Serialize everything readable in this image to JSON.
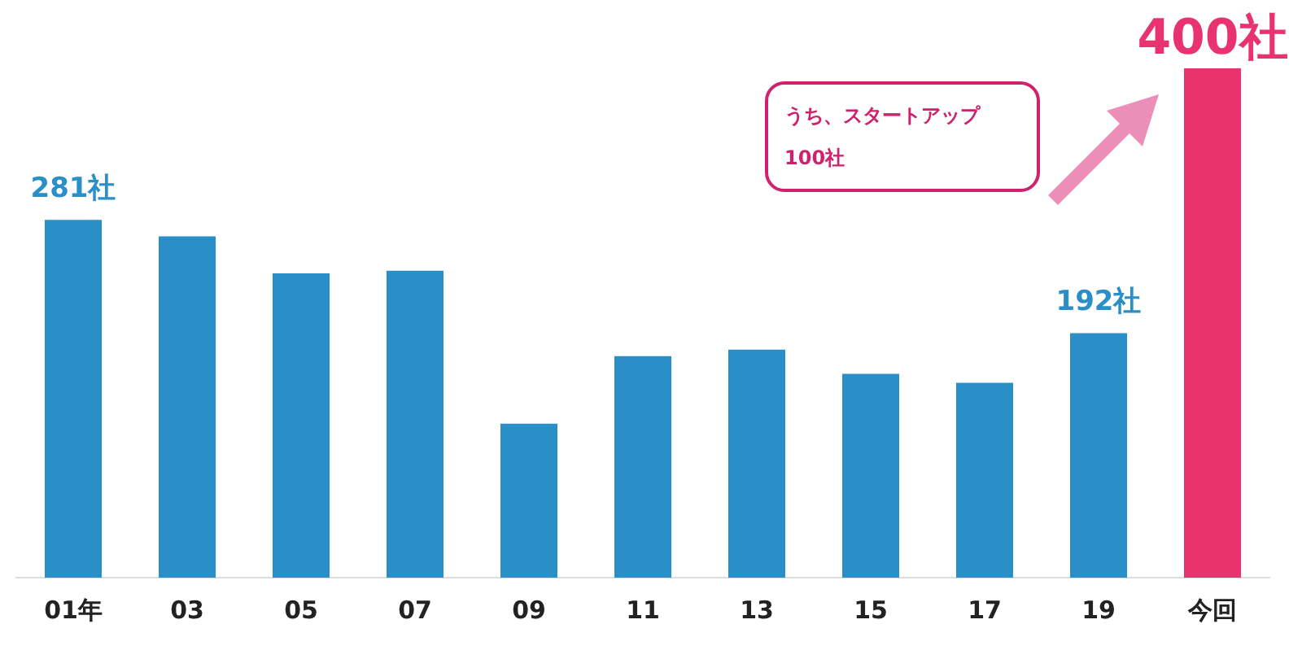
{
  "chart_data": {
    "type": "bar",
    "categories": [
      "01年",
      "03",
      "05",
      "07",
      "09",
      "11",
      "13",
      "15",
      "17",
      "19",
      "今回"
    ],
    "values": [
      281,
      268,
      239,
      241,
      121,
      174,
      179,
      160,
      153,
      192,
      400
    ],
    "colors": [
      "#2b8fc7",
      "#2b8fc7",
      "#2b8fc7",
      "#2b8fc7",
      "#2b8fc7",
      "#2b8fc7",
      "#2b8fc7",
      "#2b8fc7",
      "#2b8fc7",
      "#2b8fc7",
      "#e8336f"
    ],
    "value_labels": [
      "281社",
      null,
      null,
      null,
      null,
      null,
      null,
      null,
      null,
      "192社",
      "400社"
    ],
    "annotations": [
      "うち、スタートアップ\n100社"
    ],
    "grid": false,
    "legend": false
  }
}
